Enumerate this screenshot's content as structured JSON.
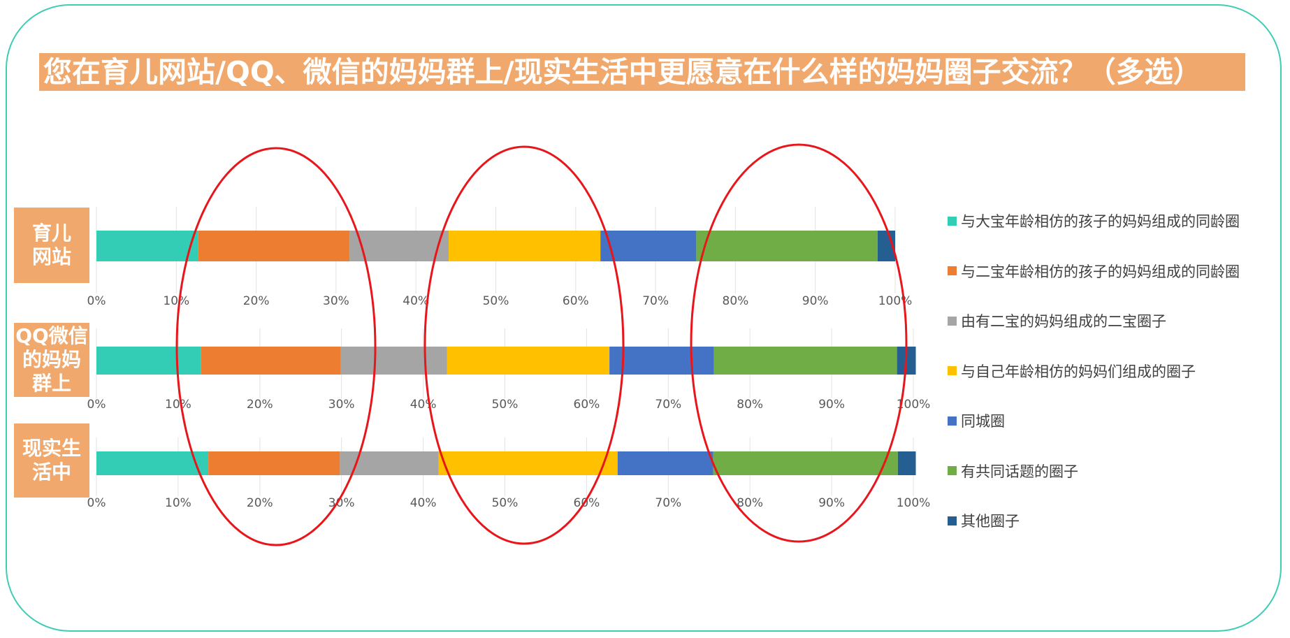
{
  "title": "您在育儿网站/QQ、微信的妈妈群上/现实生活中更愿意在什么样的妈妈圈子交流？（多选）",
  "colors": {
    "accent": "#f0a86c",
    "frame": "#3ecdb4",
    "highlight_ellipse": "#e8161b"
  },
  "annotations": "三个红色椭圆圈出各组对比区域",
  "chart_data": {
    "type": "bar",
    "orientation": "horizontal",
    "stacked": true,
    "percent_axis": true,
    "xlim": [
      0,
      100
    ],
    "tick_labels": [
      "0%",
      "10%",
      "20%",
      "30%",
      "40%",
      "50%",
      "60%",
      "70%",
      "80%",
      "90%",
      "100%"
    ],
    "legend_position": "right",
    "categories": [
      "育儿\n网站",
      "QQ微信\n的妈妈\n群上",
      "现实生\n活中"
    ],
    "series": [
      {
        "name": "与大宝年龄相仿的孩子的妈妈组成的同龄圈",
        "color": "#33ccb5",
        "values": [
          12.7,
          12.8,
          13.7
        ]
      },
      {
        "name": "与二宝年龄相仿的孩子的妈妈组成的同龄圈",
        "color": "#ed7d31",
        "values": [
          19.0,
          17.1,
          16.1
        ]
      },
      {
        "name": "由有二宝的妈妈组成的二宝圈子",
        "color": "#a5a5a5",
        "values": [
          12.4,
          13.0,
          12.1
        ]
      },
      {
        "name": "与自己年龄相仿的妈妈们组成的圈子",
        "color": "#ffc000",
        "values": [
          19.0,
          19.9,
          21.9
        ]
      },
      {
        "name": "同城圈",
        "color": "#4472c4",
        "values": [
          12.0,
          12.8,
          11.7
        ]
      },
      {
        "name": "有共同话题的圈子",
        "color": "#70ad47",
        "values": [
          22.7,
          22.4,
          22.6
        ]
      },
      {
        "name": "其他圈子",
        "color": "#255e91",
        "values": [
          2.2,
          2.3,
          2.2
        ]
      }
    ]
  }
}
